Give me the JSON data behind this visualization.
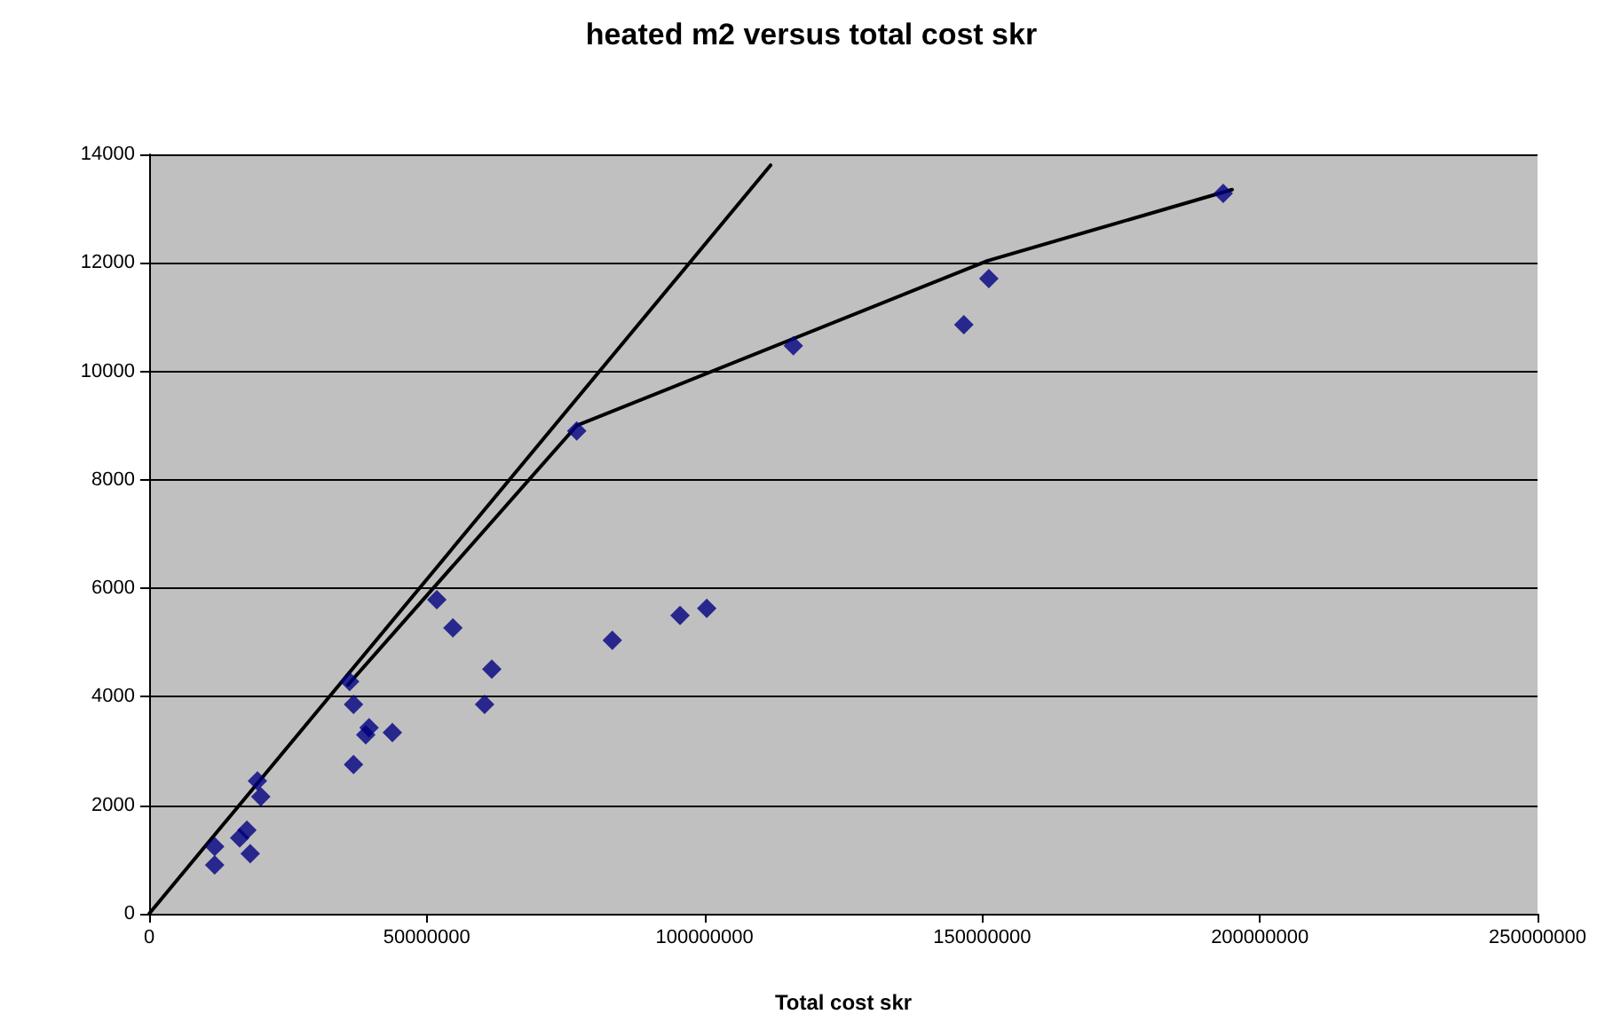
{
  "chart_data": {
    "type": "scatter",
    "title": "heated m2 versus total cost skr",
    "xlabel": "Total cost skr",
    "xlim": [
      0,
      250000000
    ],
    "xticks": [
      0,
      50000000,
      100000000,
      150000000,
      200000000,
      250000000
    ],
    "ylim": [
      0,
      14000
    ],
    "yticks": [
      0,
      2000,
      4000,
      6000,
      8000,
      10000,
      12000,
      14000
    ],
    "grid": "y",
    "series": [
      {
        "marker": "diamond",
        "color": "#000080",
        "x": [
          11800000,
          11800000,
          16300000,
          17600000,
          18200000,
          19500000,
          20100000,
          36100000,
          36800000,
          36800000,
          39000000,
          39600000,
          43800000,
          51800000,
          54700000,
          60400000,
          61700000,
          77000000,
          83400000,
          95600000,
          100400000,
          116000000,
          146700000,
          151200000,
          193400000
        ],
        "values": [
          1240,
          900,
          1400,
          1540,
          1110,
          2450,
          2160,
          4280,
          3860,
          2750,
          3300,
          3430,
          3340,
          5790,
          5270,
          3860,
          4510,
          8900,
          5040,
          5500,
          5630,
          10470,
          10860,
          11710,
          13280
        ]
      },
      {
        "type": "line",
        "marker": "none",
        "line_style": "solid",
        "color": "#000000",
        "x": [
          0,
          111900000
        ],
        "values": [
          0,
          13800
        ]
      },
      {
        "type": "line",
        "marker": "none",
        "line_style": "solid",
        "color": "#000000",
        "x": [
          35800000,
          77000000,
          151000000,
          195000000
        ],
        "values": [
          4220,
          9000,
          12040,
          13350
        ]
      }
    ]
  }
}
